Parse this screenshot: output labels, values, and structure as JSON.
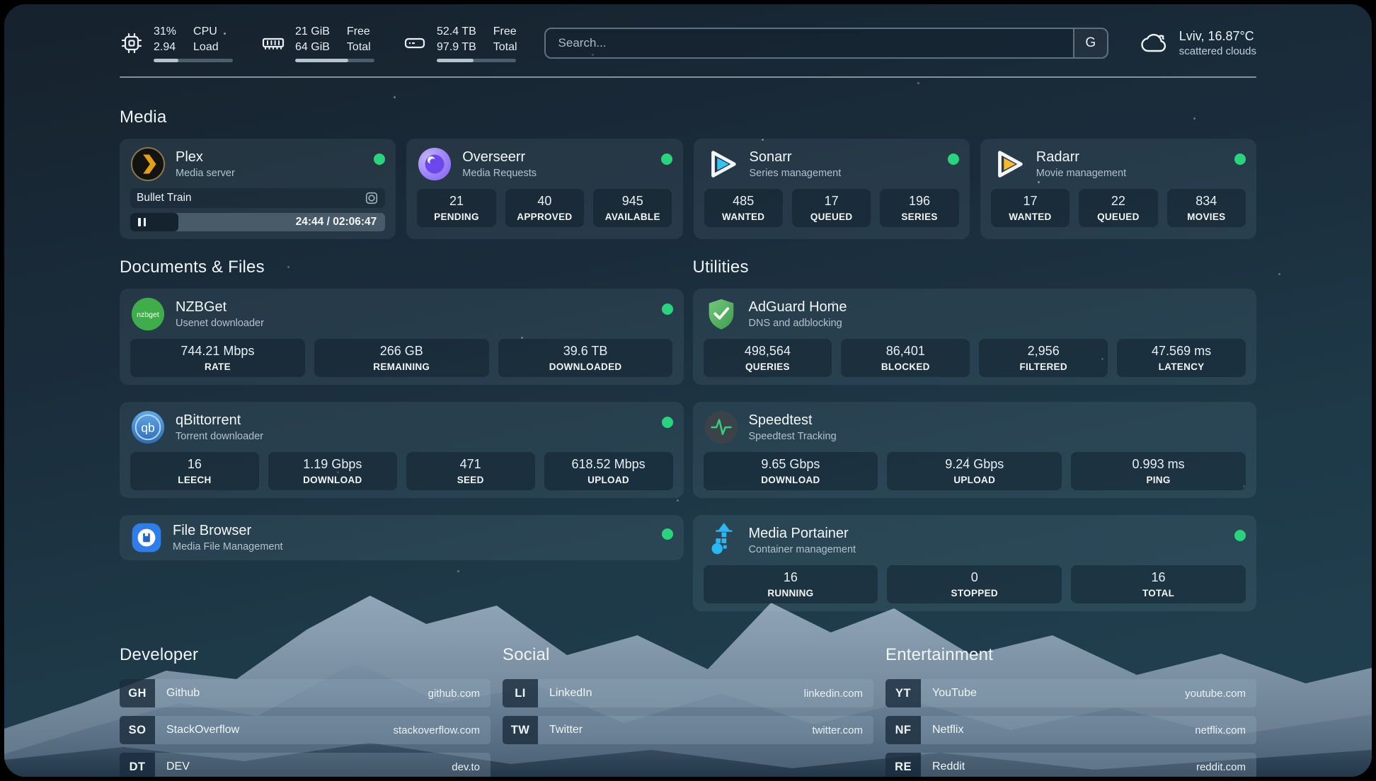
{
  "colors": {
    "online": "#2ad47c",
    "plex_amber": "#e5a00d",
    "sonarr_blue": "#35c5f4",
    "radarr_amber": "#f5b82e",
    "nzbget_green": "#3fae4a",
    "adguard_green": "#57b05c",
    "qbittorrent_blue": "#3f83d0",
    "speedtest_green": "#35d07f",
    "filebrowser_blue": "#2e7de9",
    "portainer_blue": "#29b8f5"
  },
  "header": {
    "system_stats": [
      {
        "icon": "cpu-icon",
        "values": [
          "31%",
          "2.94"
        ],
        "labels": [
          "CPU",
          "Load"
        ],
        "progress_pct": 31
      },
      {
        "icon": "ram-icon",
        "values": [
          "21 GiB",
          "64 GiB"
        ],
        "labels": [
          "Free",
          "Total"
        ],
        "progress_pct": 67
      },
      {
        "icon": "disk-icon",
        "values": [
          "52.4 TB",
          "97.9 TB"
        ],
        "labels": [
          "Free",
          "Total"
        ],
        "progress_pct": 46
      }
    ],
    "search": {
      "placeholder": "Search...",
      "engine_button": "G"
    },
    "weather": {
      "icon": "cloud-icon",
      "location_temp": "Lviv, 16.87°C",
      "condition": "scattered clouds"
    }
  },
  "sections": {
    "media": {
      "title": "Media",
      "plex": {
        "name": "Plex",
        "subtitle": "Media server",
        "online": true,
        "now_playing": "Bullet Train",
        "time_display": "24:44 / 02:06:47",
        "progress_pct": 19
      },
      "overseerr": {
        "name": "Overseerr",
        "subtitle": "Media Requests",
        "online": true,
        "stats": [
          {
            "value": "21",
            "label": "PENDING"
          },
          {
            "value": "40",
            "label": "APPROVED"
          },
          {
            "value": "945",
            "label": "AVAILABLE"
          }
        ]
      },
      "sonarr": {
        "name": "Sonarr",
        "subtitle": "Series management",
        "online": true,
        "stats": [
          {
            "value": "485",
            "label": "WANTED"
          },
          {
            "value": "17",
            "label": "QUEUED"
          },
          {
            "value": "196",
            "label": "SERIES"
          }
        ]
      },
      "radarr": {
        "name": "Radarr",
        "subtitle": "Movie management",
        "online": true,
        "stats": [
          {
            "value": "17",
            "label": "WANTED"
          },
          {
            "value": "22",
            "label": "QUEUED"
          },
          {
            "value": "834",
            "label": "MOVIES"
          }
        ]
      }
    },
    "documents": {
      "title": "Documents & Files",
      "nzbget": {
        "name": "NZBGet",
        "subtitle": "Usenet downloader",
        "online": true,
        "stats": [
          {
            "value": "744.21 Mbps",
            "label": "RATE"
          },
          {
            "value": "266 GB",
            "label": "REMAINING"
          },
          {
            "value": "39.6 TB",
            "label": "DOWNLOADED"
          }
        ]
      },
      "qbittorrent": {
        "name": "qBittorrent",
        "subtitle": "Torrent downloader",
        "online": true,
        "stats": [
          {
            "value": "16",
            "label": "LEECH"
          },
          {
            "value": "1.19 Gbps",
            "label": "DOWNLOAD"
          },
          {
            "value": "471",
            "label": "SEED"
          },
          {
            "value": "618.52 Mbps",
            "label": "UPLOAD"
          }
        ]
      },
      "filebrowser": {
        "name": "File Browser",
        "subtitle": "Media File Management",
        "online": true
      }
    },
    "utilities": {
      "title": "Utilities",
      "adguard": {
        "name": "AdGuard Home",
        "subtitle": "DNS and adblocking",
        "online": false,
        "stats": [
          {
            "value": "498,564",
            "label": "QUERIES"
          },
          {
            "value": "86,401",
            "label": "BLOCKED"
          },
          {
            "value": "2,956",
            "label": "FILTERED"
          },
          {
            "value": "47.569 ms",
            "label": "LATENCY"
          }
        ]
      },
      "speedtest": {
        "name": "Speedtest",
        "subtitle": "Speedtest Tracking",
        "online": false,
        "stats": [
          {
            "value": "9.65 Gbps",
            "label": "DOWNLOAD"
          },
          {
            "value": "9.24 Gbps",
            "label": "UPLOAD"
          },
          {
            "value": "0.993 ms",
            "label": "PING"
          }
        ]
      },
      "portainer": {
        "name": "Media Portainer",
        "subtitle": "Container management",
        "online": true,
        "stats": [
          {
            "value": "16",
            "label": "RUNNING"
          },
          {
            "value": "0",
            "label": "STOPPED"
          },
          {
            "value": "16",
            "label": "TOTAL"
          }
        ]
      }
    },
    "links": [
      {
        "title": "Developer",
        "items": [
          {
            "abbr": "GH",
            "label": "Github",
            "url": "github.com"
          },
          {
            "abbr": "SO",
            "label": "StackOverflow",
            "url": "stackoverflow.com"
          },
          {
            "abbr": "DT",
            "label": "DEV",
            "url": "dev.to"
          }
        ]
      },
      {
        "title": "Social",
        "items": [
          {
            "abbr": "LI",
            "label": "LinkedIn",
            "url": "linkedin.com"
          },
          {
            "abbr": "TW",
            "label": "Twitter",
            "url": "twitter.com"
          }
        ]
      },
      {
        "title": "Entertainment",
        "items": [
          {
            "abbr": "YT",
            "label": "YouTube",
            "url": "youtube.com"
          },
          {
            "abbr": "NF",
            "label": "Netflix",
            "url": "netflix.com"
          },
          {
            "abbr": "RE",
            "label": "Reddit",
            "url": "reddit.com"
          }
        ]
      }
    ]
  }
}
